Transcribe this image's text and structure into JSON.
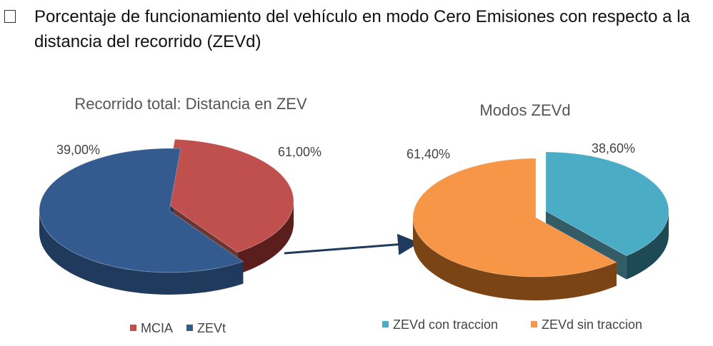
{
  "heading": {
    "bullet_icon": "checkbox-bullet-icon",
    "text": "Porcentaje de funcionamiento del vehículo en modo Cero Emisiones con respecto a la distancia del recorrido (ZEVd)"
  },
  "chart_data": [
    {
      "type": "pie",
      "title": "Recorrido total: Distancia en ZEV",
      "categories": [
        "MCIA",
        "ZEVt"
      ],
      "values": [
        39.0,
        61.0
      ],
      "labels": [
        "39,00%",
        "61,00%"
      ],
      "colors": [
        "#c0504d",
        "#345b8f"
      ],
      "side_colors": [
        "#5a1f1d",
        "#1f3a5c"
      ],
      "legend": "bottom",
      "exploded": "MCIA",
      "style": "3d"
    },
    {
      "type": "pie",
      "title": "Modos ZEVd",
      "categories": [
        "ZEVd con traccion",
        "ZEVd sin traccion"
      ],
      "values": [
        38.6,
        61.4
      ],
      "labels": [
        "38,60%",
        "61,40%"
      ],
      "colors": [
        "#4bacc6",
        "#f79646"
      ],
      "side_colors": [
        "#1e4a55",
        "#7a4415"
      ],
      "legend": "bottom",
      "exploded": "ZEVd con traccion",
      "style": "3d"
    }
  ],
  "connector": {
    "icon": "arrow-right-icon",
    "color": "#1f3a5c"
  }
}
